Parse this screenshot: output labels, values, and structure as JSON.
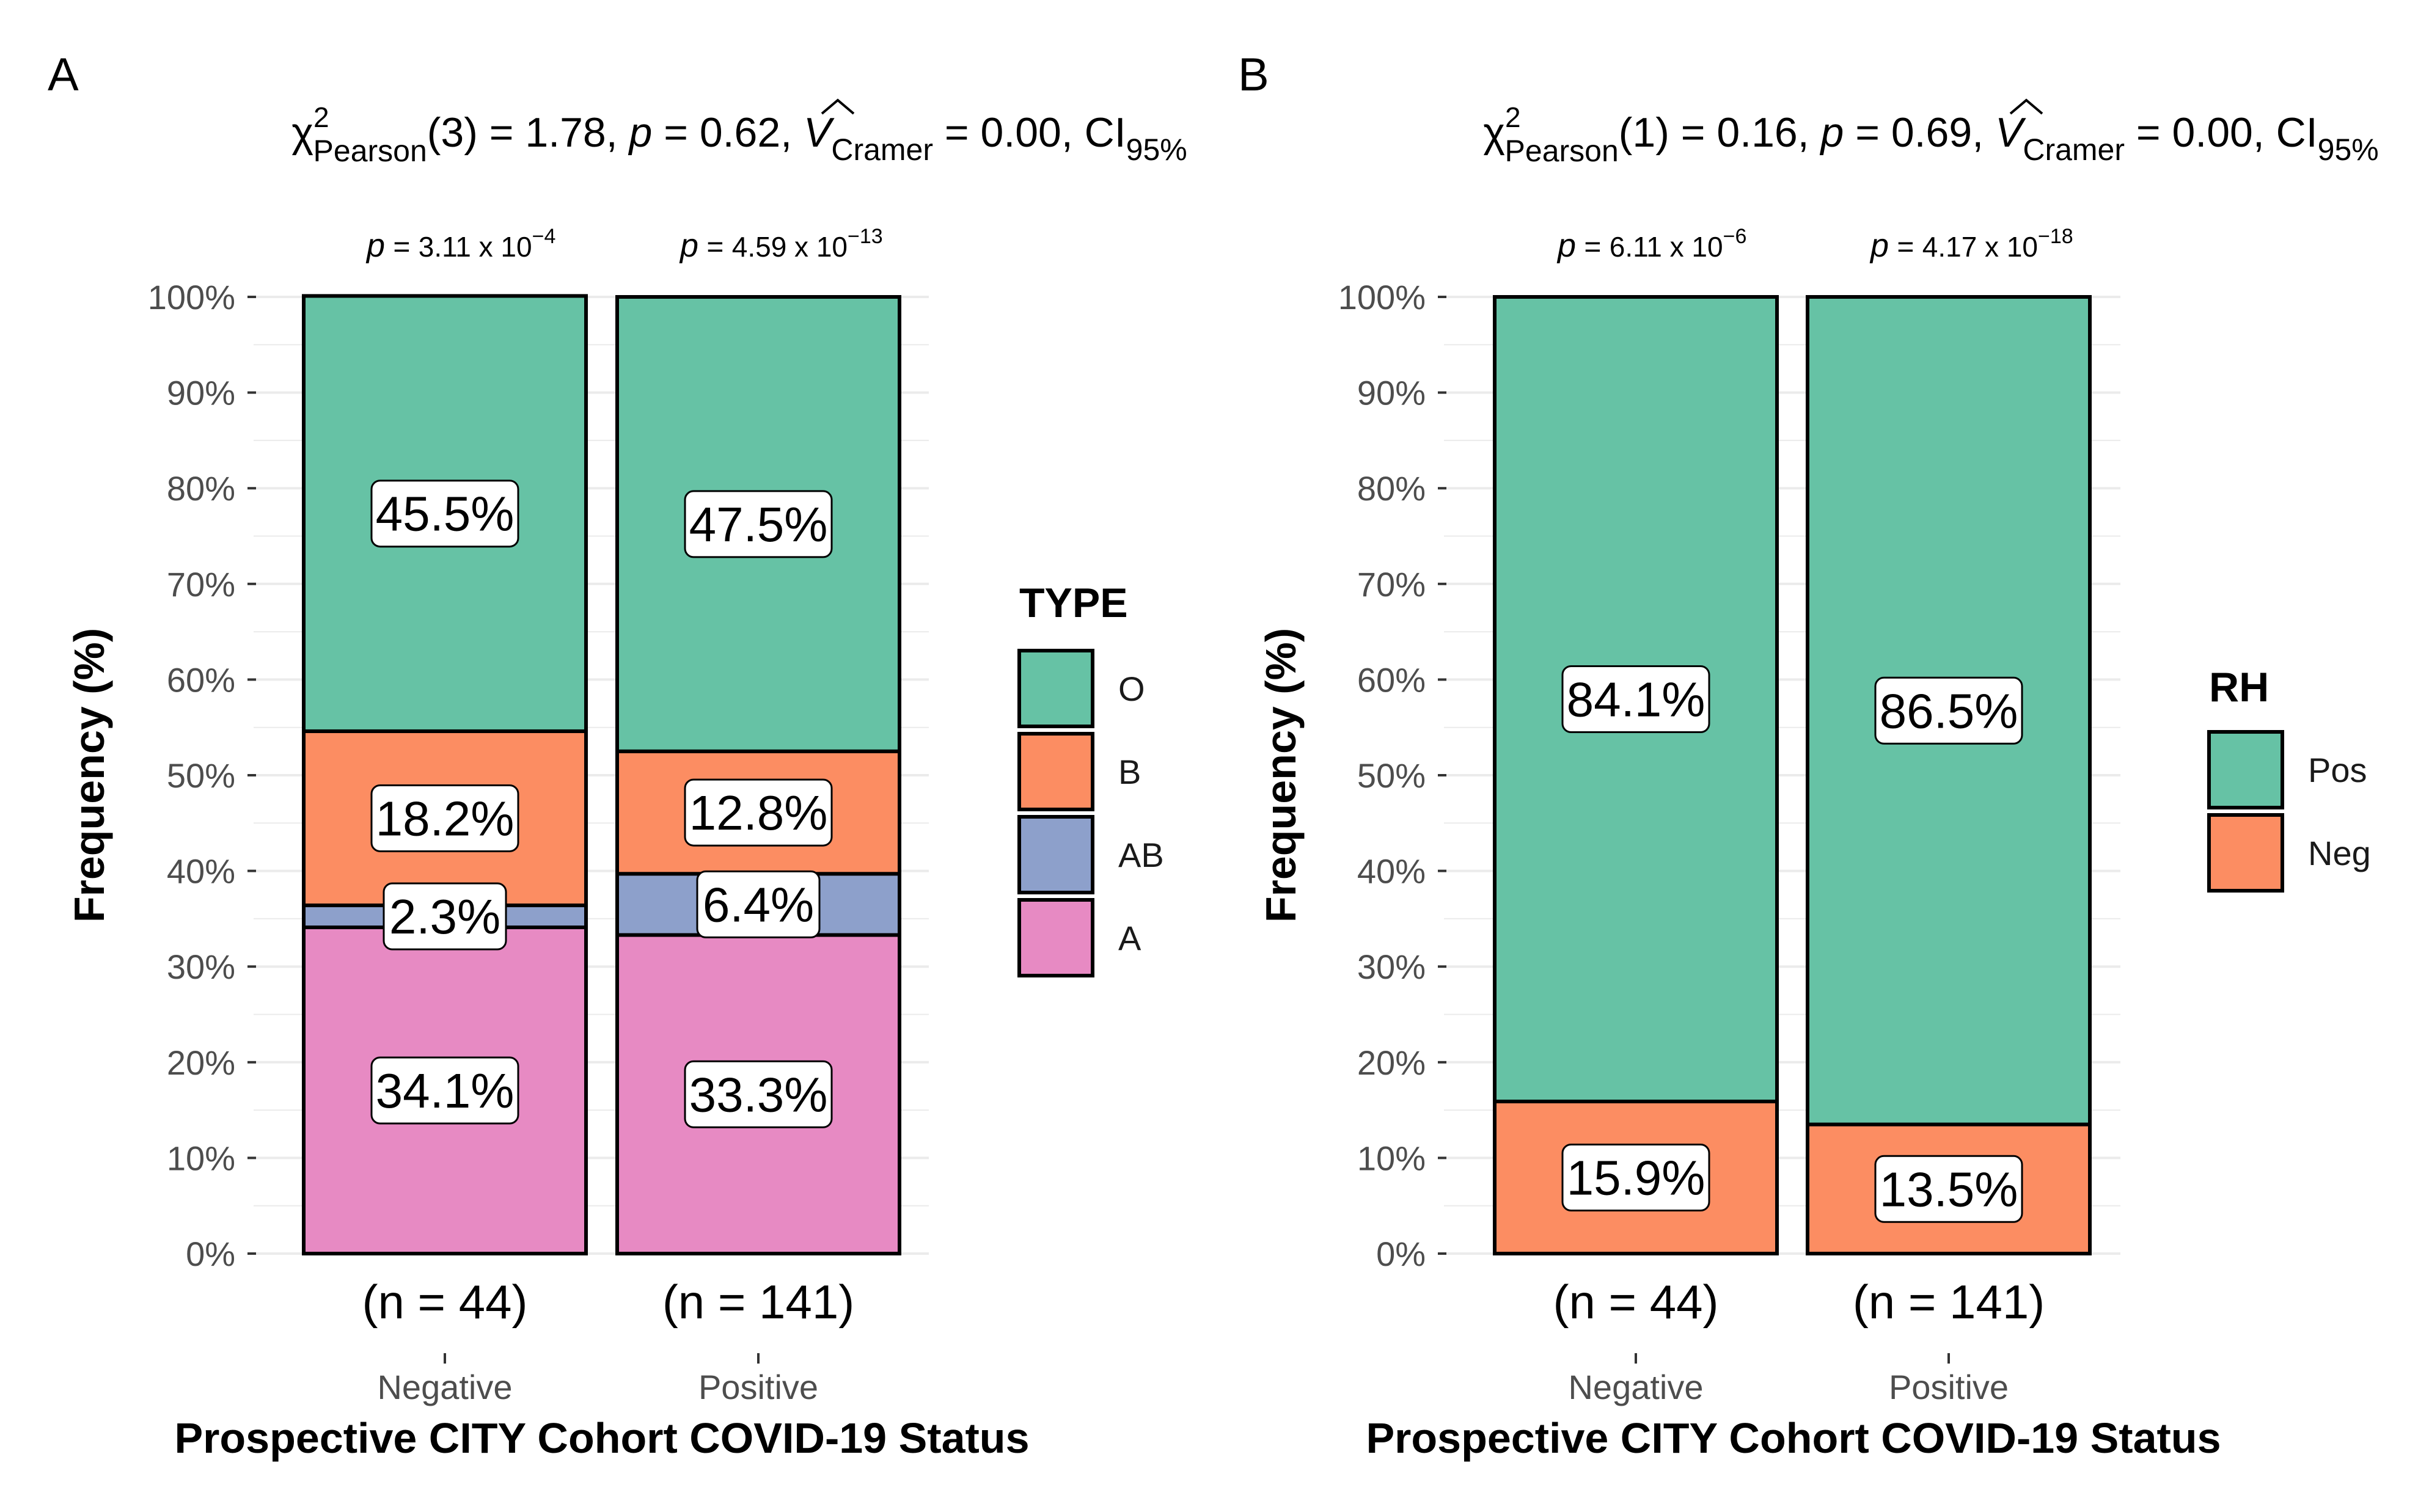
{
  "chart_data": [
    {
      "type": "bar",
      "stacked": true,
      "panel_label": "A",
      "subtitle": {
        "chi": "χ",
        "chi_sup": "2",
        "chi_sub": "Pearson",
        "df": "(3) = 1.78, ",
        "p": "p",
        "p_value": " = 0.62, ",
        "v": "V",
        "v_hat": "^",
        "v_sub": "Cramer",
        "v_value": " = 0.00, CI",
        "ci_sub": "95%"
      },
      "categories": [
        "Negative",
        "Positive"
      ],
      "n_labels": [
        "(n = 44)",
        "(n = 141)"
      ],
      "pvalues": [
        {
          "p": "p",
          "eq": "=",
          "mantissa": "3.11 x 10",
          "exponent": "−4"
        },
        {
          "p": "p",
          "eq": "=",
          "mantissa": "4.59 x 10",
          "exponent": "−13"
        }
      ],
      "series": [
        {
          "name": "A",
          "color": "#E78AC3",
          "values": [
            34.1,
            33.3
          ],
          "labels": [
            "34.1%",
            "33.3%"
          ]
        },
        {
          "name": "AB",
          "color": "#8DA0CB",
          "values": [
            2.3,
            6.4
          ],
          "labels": [
            "2.3%",
            "6.4%"
          ]
        },
        {
          "name": "B",
          "color": "#FC8D62",
          "values": [
            18.2,
            12.8
          ],
          "labels": [
            "18.2%",
            "12.8%"
          ]
        },
        {
          "name": "O",
          "color": "#66C2A5",
          "values": [
            45.5,
            47.5
          ],
          "labels": [
            "45.5%",
            "47.5%"
          ]
        }
      ],
      "legend": {
        "title": "TYPE",
        "items": [
          "O",
          "B",
          "AB",
          "A"
        ]
      },
      "ylabel": "Frequency (%)",
      "xlabel": "Prospective CITY Cohort COVID-19 Status",
      "yticks": [
        "0%",
        "10%",
        "20%",
        "30%",
        "40%",
        "50%",
        "60%",
        "70%",
        "80%",
        "90%",
        "100%"
      ],
      "ylim": [
        0,
        100
      ]
    },
    {
      "type": "bar",
      "stacked": true,
      "panel_label": "B",
      "subtitle": {
        "chi": "χ",
        "chi_sup": "2",
        "chi_sub": "Pearson",
        "df": "(1) = 0.16, ",
        "p": "p",
        "p_value": " = 0.69, ",
        "v": "V",
        "v_hat": "^",
        "v_sub": "Cramer",
        "v_value": " = 0.00, CI",
        "ci_sub": "95%"
      },
      "categories": [
        "Negative",
        "Positive"
      ],
      "n_labels": [
        "(n = 44)",
        "(n = 141)"
      ],
      "pvalues": [
        {
          "p": "p",
          "eq": "=",
          "mantissa": "6.11 x 10",
          "exponent": "−6"
        },
        {
          "p": "p",
          "eq": "=",
          "mantissa": "4.17 x 10",
          "exponent": "−18"
        }
      ],
      "series": [
        {
          "name": "Neg",
          "color": "#FC8D62",
          "values": [
            15.9,
            13.5
          ],
          "labels": [
            "15.9%",
            "13.5%"
          ]
        },
        {
          "name": "Pos",
          "color": "#66C2A5",
          "values": [
            84.1,
            86.5
          ],
          "labels": [
            "84.1%",
            "86.5%"
          ]
        }
      ],
      "legend": {
        "title": "RH",
        "items": [
          "Pos",
          "Neg"
        ]
      },
      "ylabel": "Frequency (%)",
      "xlabel": "Prospective CITY Cohort COVID-19 Status",
      "yticks": [
        "0%",
        "10%",
        "20%",
        "30%",
        "40%",
        "50%",
        "60%",
        "70%",
        "80%",
        "90%",
        "100%"
      ],
      "ylim": [
        0,
        100
      ]
    }
  ]
}
